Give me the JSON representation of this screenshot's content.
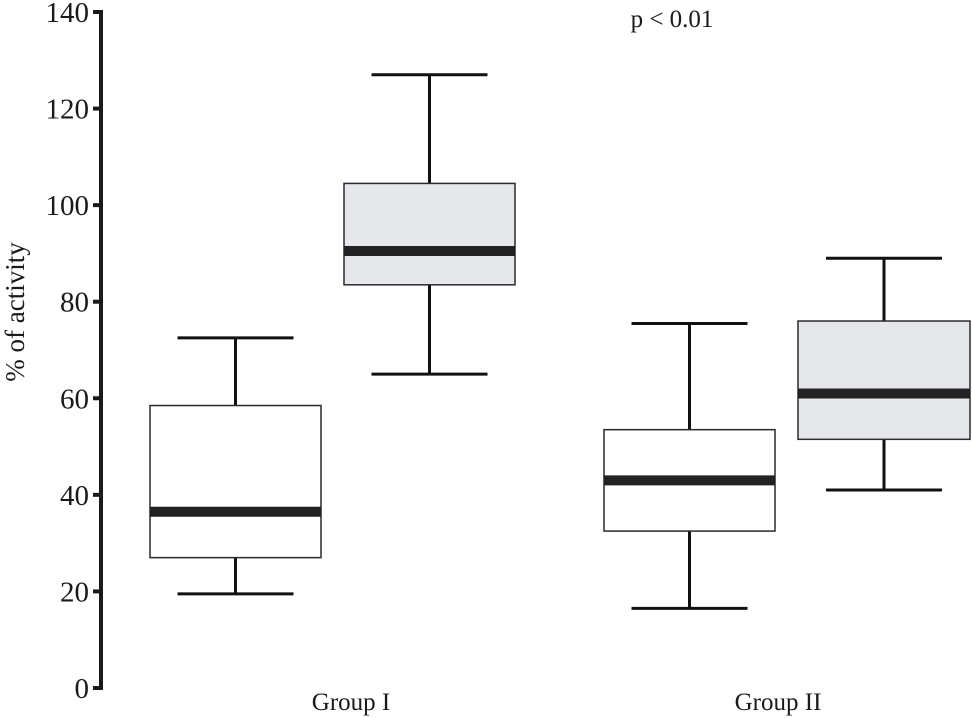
{
  "chart_data": {
    "type": "box",
    "ylabel": "% of activity",
    "xlabel": "",
    "ylim": [
      0,
      140
    ],
    "yticks": [
      0,
      20,
      40,
      60,
      80,
      100,
      120,
      140
    ],
    "categories": [
      "Group I",
      "Group II"
    ],
    "annotation": "p < 0.01",
    "box_fill_colors": [
      "#ffffff",
      "#e6e7ea"
    ],
    "boxes": [
      {
        "group": "Group I",
        "min": 19.5,
        "q1": 27,
        "median": 36.5,
        "q3": 58.5,
        "max": 72.5
      },
      {
        "group": "Group I",
        "min": 65,
        "q1": 83.5,
        "median": 90.5,
        "q3": 104.5,
        "max": 127
      },
      {
        "group": "Group II",
        "min": 16.5,
        "q1": 32.5,
        "median": 43,
        "q3": 53.5,
        "max": 75.5
      },
      {
        "group": "Group II",
        "min": 41,
        "q1": 51.5,
        "median": 61,
        "q3": 76,
        "max": 89
      }
    ]
  }
}
